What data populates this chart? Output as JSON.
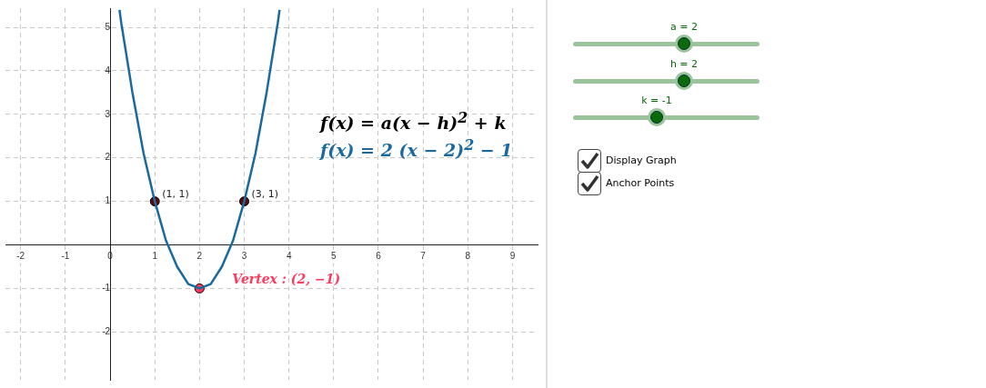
{
  "chart_data": {
    "type": "line",
    "xlim": [
      -2.34,
      9.56
    ],
    "ylim": [
      -3.1,
      5.44
    ],
    "xticks": [
      -2,
      -1,
      0,
      1,
      2,
      3,
      4,
      5,
      6,
      7,
      8,
      9
    ],
    "yticks": [
      -2,
      -1,
      1,
      2,
      3,
      4,
      5
    ],
    "grid": true,
    "line_style": "solid",
    "marker": "circle",
    "series": [
      {
        "type": "line",
        "marker": "none",
        "color": "#1a6aa0",
        "x": [
          0.21,
          0.25,
          0.5,
          0.75,
          1,
          1.25,
          1.5,
          1.75,
          2,
          2.25,
          2.5,
          2.75,
          3,
          3.25,
          3.5,
          3.75,
          3.79
        ],
        "values": [
          5.4,
          5.1,
          3.5,
          2.1,
          1,
          0.1,
          -0.5,
          -0.9,
          -1,
          -0.9,
          -0.5,
          0.1,
          1,
          2.1,
          3.5,
          5.1,
          5.4
        ]
      },
      {
        "type": "scatter",
        "color": "#5a0a0a",
        "x": [
          1,
          3
        ],
        "values": [
          1,
          1
        ]
      },
      {
        "type": "scatter",
        "color": "#ff3a5c",
        "x": [
          2
        ],
        "values": [
          -1
        ]
      }
    ],
    "annotations": [
      {
        "text": "(1, 1)",
        "x": 1,
        "y": 1
      },
      {
        "text": "(3, 1)",
        "x": 3,
        "y": 1
      },
      {
        "text": "Vertex : (2, −1)",
        "x": 2,
        "y": -1
      },
      "f(x) = a(x − h)$^{2}$ + k",
      "f(x) = 2  (x − 2)$^{2}$ − 1",
      "a = 2",
      "h = 2",
      "k = -1",
      "Display Graph",
      "Anchor Points"
    ]
  }
}
